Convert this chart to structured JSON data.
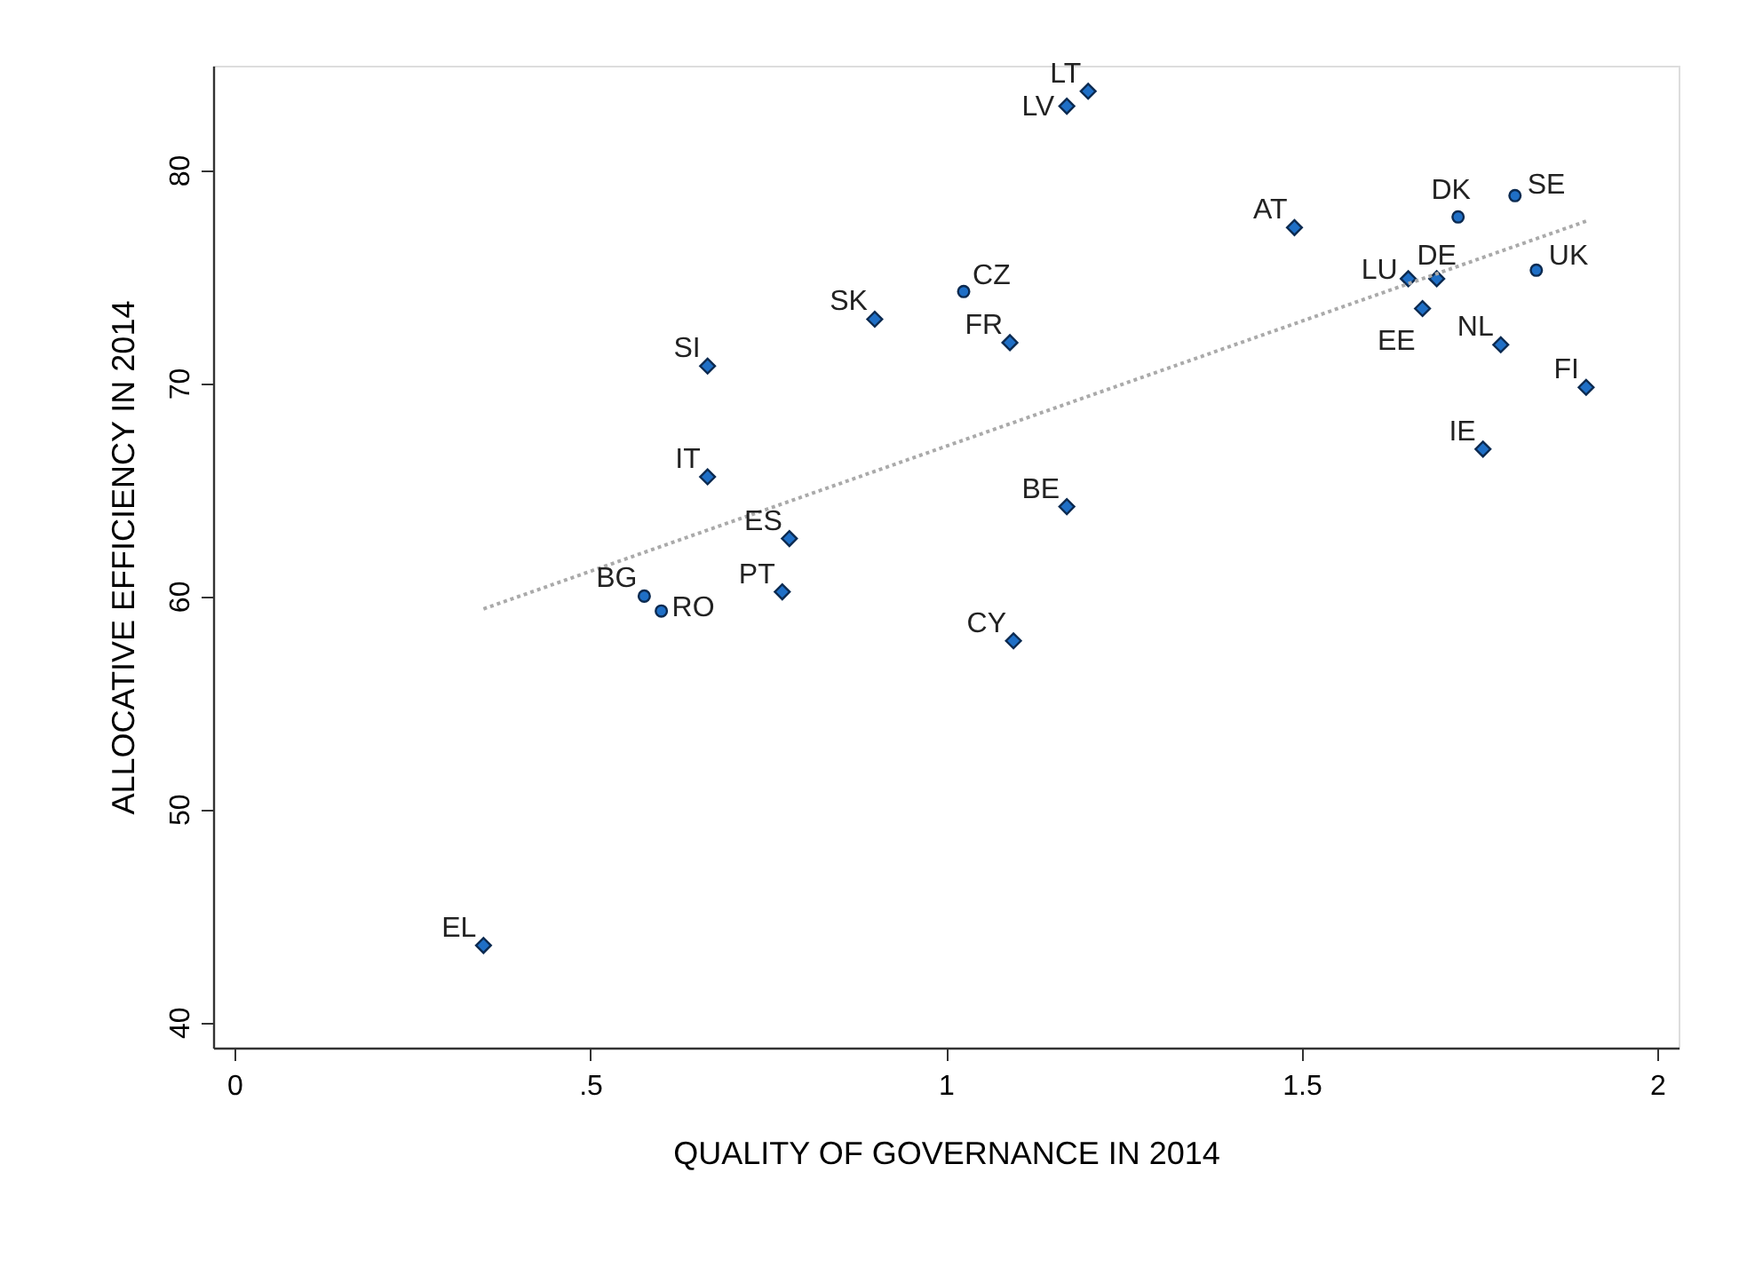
{
  "chart_data": {
    "type": "scatter",
    "xlabel": "QUALITY OF GOVERNANCE IN 2014",
    "ylabel": "ALLOCATIVE EFFICIENCY IN 2014",
    "xlim": [
      -0.03,
      2.03
    ],
    "ylim": [
      38.8,
      84.9
    ],
    "xticks": [
      0,
      {
        "value": 0.5,
        "label": ".5"
      },
      1,
      1.5,
      2
    ],
    "yticks": [
      40,
      50,
      60,
      70,
      80
    ],
    "grid": false,
    "series": [
      {
        "marker": "diamond",
        "color": "#1f6fc6",
        "x": [
          1.2,
          1.17,
          1.49,
          1.65,
          1.69,
          1.67,
          0.9,
          1.78,
          1.09,
          0.665,
          1.9,
          1.755,
          0.665,
          1.17,
          0.78,
          0.77,
          1.095,
          0.35
        ],
        "values": [
          83.7,
          83.0,
          77.3,
          74.9,
          74.9,
          73.5,
          73.0,
          71.8,
          71.9,
          70.8,
          69.8,
          66.9,
          65.6,
          64.2,
          62.7,
          60.2,
          57.9,
          43.6
        ]
      },
      {
        "marker": "circle",
        "color": "#1f6fc6",
        "x": [
          1.8,
          1.72,
          1.83,
          1.025,
          0.576,
          0.6
        ],
        "values": [
          78.8,
          77.8,
          75.3,
          74.3,
          60.0,
          59.3
        ]
      },
      {
        "type": "line",
        "line_style": "dotted",
        "color": "#aaaaaa",
        "x": [
          0.35,
          1.9
        ],
        "values": [
          59.4,
          77.6
        ]
      }
    ],
    "annotations": [
      {
        "text": "LT",
        "x": 1.2,
        "y": 83.7
      },
      {
        "text": "LV",
        "x": 1.17,
        "y": 83.0
      },
      {
        "text": "AT",
        "x": 1.49,
        "y": 77.3
      },
      {
        "text": "LU",
        "x": 1.65,
        "y": 74.9
      },
      {
        "text": "DE",
        "x": 1.69,
        "y": 74.9
      },
      {
        "text": "EE",
        "x": 1.67,
        "y": 73.5
      },
      {
        "text": "SK",
        "x": 0.9,
        "y": 73.0
      },
      {
        "text": "NL",
        "x": 1.78,
        "y": 71.8
      },
      {
        "text": "FR",
        "x": 1.09,
        "y": 71.9
      },
      {
        "text": "SI",
        "x": 0.665,
        "y": 70.8
      },
      {
        "text": "FI",
        "x": 1.9,
        "y": 69.8
      },
      {
        "text": "IE",
        "x": 1.755,
        "y": 66.9
      },
      {
        "text": "IT",
        "x": 0.665,
        "y": 65.6
      },
      {
        "text": "BE",
        "x": 1.17,
        "y": 64.2
      },
      {
        "text": "ES",
        "x": 0.78,
        "y": 62.7
      },
      {
        "text": "PT",
        "x": 0.77,
        "y": 60.2
      },
      {
        "text": "CY",
        "x": 1.095,
        "y": 57.9
      },
      {
        "text": "EL",
        "x": 0.35,
        "y": 43.6
      },
      {
        "text": "SE",
        "x": 1.8,
        "y": 78.8
      },
      {
        "text": "DK",
        "x": 1.72,
        "y": 77.8
      },
      {
        "text": "UK",
        "x": 1.83,
        "y": 75.3
      },
      {
        "text": "CZ",
        "x": 1.025,
        "y": 74.3
      },
      {
        "text": "BG",
        "x": 0.576,
        "y": 60.0
      },
      {
        "text": "RO",
        "x": 0.6,
        "y": 59.3
      }
    ]
  }
}
